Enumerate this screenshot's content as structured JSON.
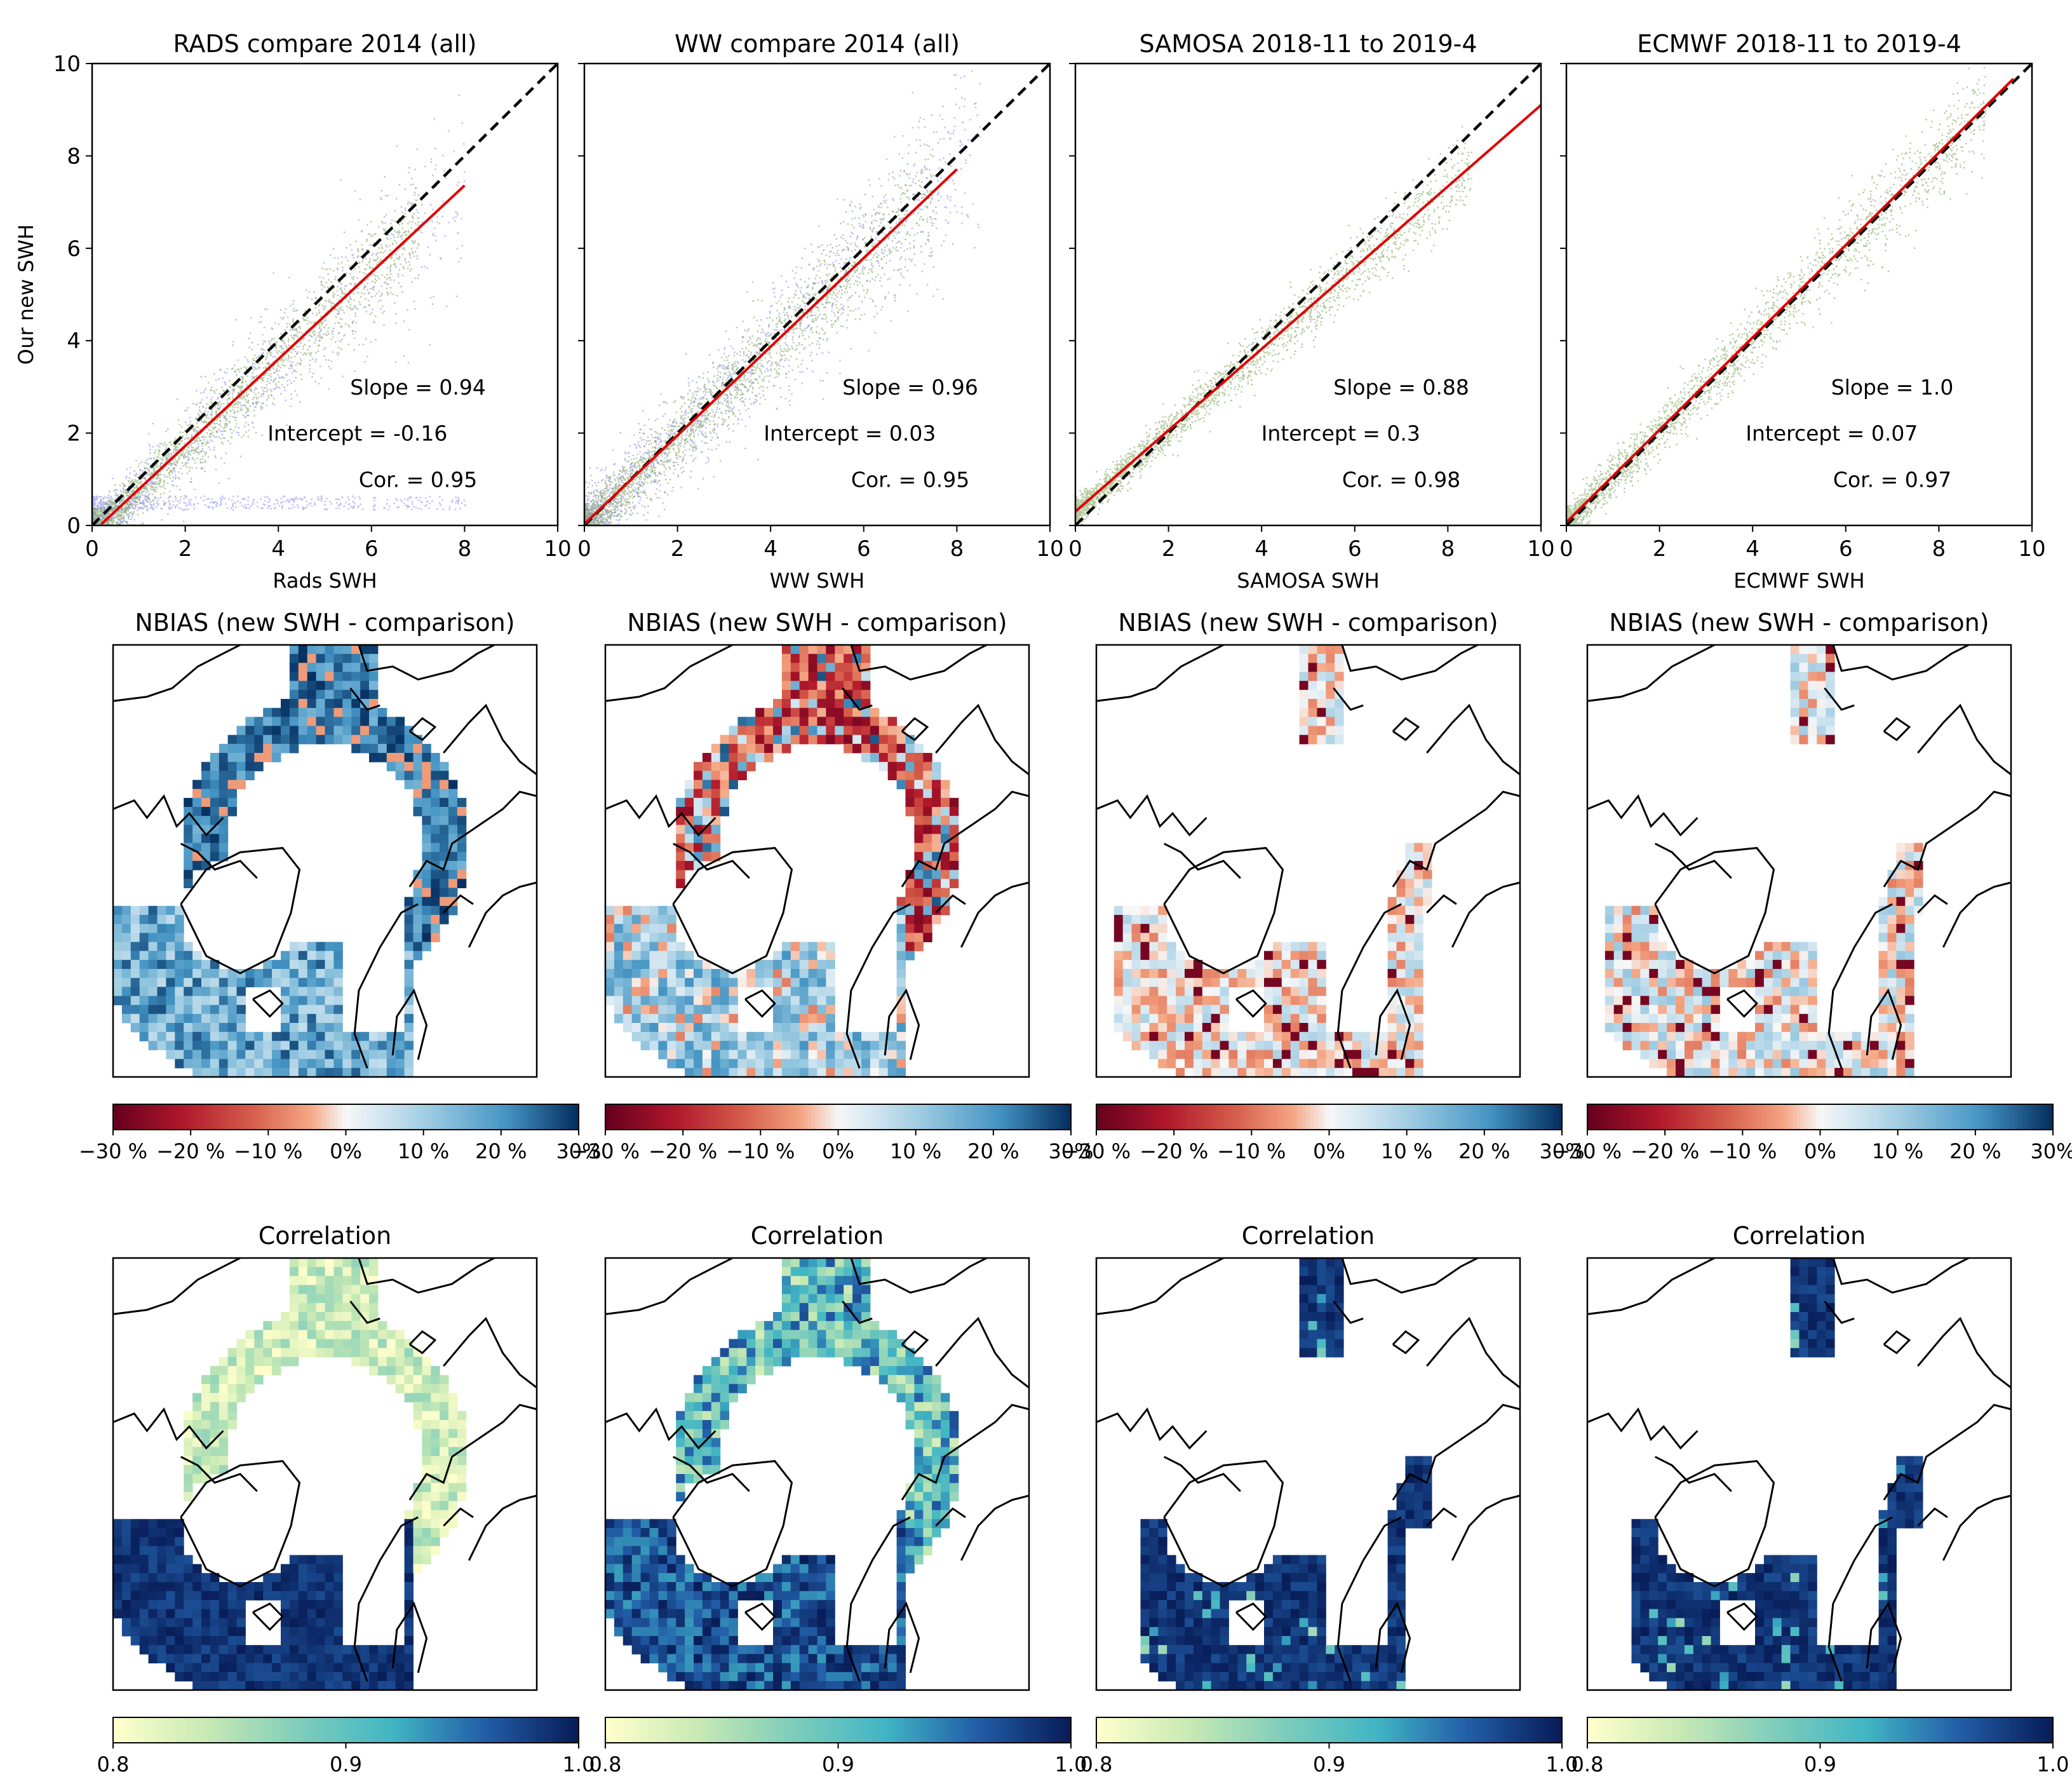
{
  "figure": {
    "y_axis_label": "Our new SWH",
    "colors": {
      "ocean_blue": "#2b5b9c",
      "scatter_blue": "#3a3af0",
      "scatter_green": "#5a8a2a",
      "fit_red": "#e00000",
      "identity": "#000000"
    }
  },
  "chart_data": [
    {
      "type": "scatter",
      "title": "RADS compare 2014 (all)",
      "xlabel": "Rads SWH",
      "ylabel": "Our new SWH",
      "xlim": [
        0,
        10
      ],
      "ylim": [
        0,
        10
      ],
      "x_ticks": [
        "0",
        "2",
        "4",
        "6",
        "8",
        "10"
      ],
      "y_ticks": [
        "0",
        "2",
        "4",
        "6",
        "8",
        "10"
      ],
      "fit": {
        "x0": 0.2,
        "x1": 8.0,
        "slope": 0.94,
        "intercept": -0.16
      },
      "series": [
        {
          "name": "blue",
          "x_max": 8.0,
          "spread": 0.9
        },
        {
          "name": "green",
          "x_max": 7.0,
          "spread": 0.55
        }
      ],
      "stats": {
        "slope_text": "Slope = 0.94",
        "intercept_text": "Intercept = -0.16",
        "cor_text": "Cor. = 0.95"
      }
    },
    {
      "type": "scatter",
      "title": "WW compare 2014 (all)",
      "xlabel": "WW SWH",
      "ylabel": "",
      "xlim": [
        0,
        10
      ],
      "ylim": [
        0,
        10
      ],
      "x_ticks": [
        "0",
        "2",
        "4",
        "6",
        "8",
        "10"
      ],
      "fit": {
        "x0": 0.0,
        "x1": 8.0,
        "slope": 0.96,
        "intercept": 0.03
      },
      "series": [
        {
          "name": "blue",
          "x_max": 8.5,
          "spread": 0.9
        },
        {
          "name": "green",
          "x_max": 7.5,
          "spread": 0.6
        }
      ],
      "stats": {
        "slope_text": "Slope = 0.96",
        "intercept_text": "Intercept = 0.03",
        "cor_text": "Cor. = 0.95"
      }
    },
    {
      "type": "scatter",
      "title": "SAMOSA 2018-11 to 2019-4",
      "xlabel": "SAMOSA SWH",
      "ylabel": "",
      "xlim": [
        0,
        10
      ],
      "ylim": [
        0,
        10
      ],
      "x_ticks": [
        "0",
        "2",
        "4",
        "6",
        "8",
        "10"
      ],
      "fit": {
        "x0": 0.0,
        "x1": 10.0,
        "slope": 0.88,
        "intercept": 0.3
      },
      "series": [
        {
          "name": "green",
          "x_max": 8.5,
          "spread": 0.35
        }
      ],
      "stats": {
        "slope_text": "Slope = 0.88",
        "intercept_text": "Intercept = 0.3",
        "cor_text": "Cor. = 0.98"
      }
    },
    {
      "type": "scatter",
      "title": "ECMWF 2018-11 to 2019-4",
      "xlabel": "ECMWF SWH",
      "ylabel": "",
      "xlim": [
        0,
        10
      ],
      "ylim": [
        0,
        10
      ],
      "x_ticks": [
        "0",
        "2",
        "4",
        "6",
        "8",
        "10"
      ],
      "fit": {
        "x0": 0.0,
        "x1": 9.6,
        "slope": 1.0,
        "intercept": 0.07
      },
      "series": [
        {
          "name": "green",
          "x_max": 9.0,
          "spread": 0.45
        }
      ],
      "stats": {
        "slope_text": "Slope = 1.0",
        "intercept_text": "Intercept = 0.07",
        "cor_text": "Cor. = 0.97"
      }
    },
    {
      "type": "heatmap",
      "title": "NBIAS (new SWH - comparison)",
      "variant": "rads",
      "colorbar": {
        "min": -30,
        "max": 30,
        "ticks": [
          "−30 %",
          "−20 %",
          "−10 %",
          "0%",
          "10 %",
          "20 %",
          "30%"
        ]
      }
    },
    {
      "type": "heatmap",
      "title": "NBIAS (new SWH - comparison)",
      "variant": "ww",
      "colorbar": {
        "min": -30,
        "max": 30,
        "ticks": [
          "−30 %",
          "−20 %",
          "−10 %",
          "0%",
          "10 %",
          "20 %",
          "30%"
        ]
      }
    },
    {
      "type": "heatmap",
      "title": "NBIAS (new SWH - comparison)",
      "variant": "samosa",
      "colorbar": {
        "min": -30,
        "max": 30,
        "ticks": [
          "−30 %",
          "−20 %",
          "−10 %",
          "0%",
          "10 %",
          "20 %",
          "30%"
        ]
      }
    },
    {
      "type": "heatmap",
      "title": "NBIAS (new SWH - comparison)",
      "variant": "ecmwf",
      "colorbar": {
        "min": -30,
        "max": 30,
        "ticks": [
          "−30 %",
          "−20 %",
          "−10 %",
          "0%",
          "10 %",
          "20 %",
          "30%"
        ]
      }
    },
    {
      "type": "heatmap",
      "title": "Correlation",
      "variant": "rads",
      "colorbar": {
        "min": 0.8,
        "max": 1.0,
        "ticks": [
          "0.8",
          "0.9",
          "1.0"
        ]
      }
    },
    {
      "type": "heatmap",
      "title": "Correlation",
      "variant": "ww",
      "colorbar": {
        "min": 0.8,
        "max": 1.0,
        "ticks": [
          "0.8",
          "0.9",
          "1.0"
        ]
      }
    },
    {
      "type": "heatmap",
      "title": "Correlation",
      "variant": "samosa",
      "colorbar": {
        "min": 0.8,
        "max": 1.0,
        "ticks": [
          "0.8",
          "0.9",
          "1.0"
        ]
      }
    },
    {
      "type": "heatmap",
      "title": "Correlation",
      "variant": "ecmwf",
      "colorbar": {
        "min": 0.8,
        "max": 1.0,
        "ticks": [
          "0.8",
          "0.9",
          "1.0"
        ]
      }
    }
  ]
}
